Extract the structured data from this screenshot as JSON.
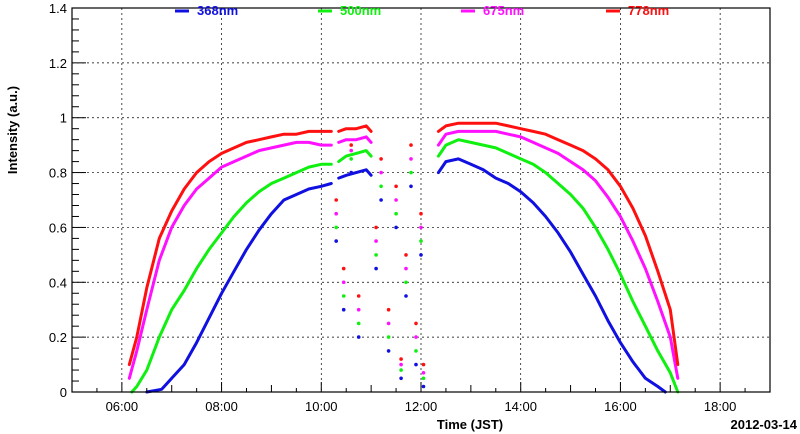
{
  "chart_data": {
    "type": "line",
    "title": "",
    "xlabel": "Time (JST)",
    "ylabel": "Intensity (a.u.)",
    "date_label": "2012-03-14",
    "x_unit": "hours",
    "xlim": [
      5.0,
      19.0
    ],
    "ylim": [
      0,
      1.4
    ],
    "x_ticks": [
      {
        "value": 6,
        "label": "06:00"
      },
      {
        "value": 8,
        "label": "08:00"
      },
      {
        "value": 10,
        "label": "10:00"
      },
      {
        "value": 12,
        "label": "12:00"
      },
      {
        "value": 14,
        "label": "14:00"
      },
      {
        "value": 16,
        "label": "16:00"
      },
      {
        "value": 18,
        "label": "18:00"
      }
    ],
    "y_ticks": [
      {
        "value": 0,
        "label": "0"
      },
      {
        "value": 0.2,
        "label": "0.2"
      },
      {
        "value": 0.4,
        "label": "0.4"
      },
      {
        "value": 0.6,
        "label": "0.6"
      },
      {
        "value": 0.8,
        "label": "0.8"
      },
      {
        "value": 1.0,
        "label": "1"
      },
      {
        "value": 1.2,
        "label": "1.2"
      },
      {
        "value": 1.4,
        "label": "1.4"
      }
    ],
    "grid": true,
    "legend_position": "top",
    "series": [
      {
        "name": "368nm",
        "color": "#1010e0",
        "segments": [
          [
            [
              6.5,
              0.0
            ],
            [
              6.8,
              0.01
            ],
            [
              7.0,
              0.05
            ],
            [
              7.25,
              0.1
            ],
            [
              7.5,
              0.18
            ],
            [
              7.75,
              0.27
            ],
            [
              8.0,
              0.36
            ],
            [
              8.25,
              0.44
            ],
            [
              8.5,
              0.52
            ],
            [
              8.75,
              0.59
            ],
            [
              9.0,
              0.65
            ],
            [
              9.25,
              0.7
            ],
            [
              9.5,
              0.72
            ],
            [
              9.75,
              0.74
            ],
            [
              10.0,
              0.75
            ],
            [
              10.2,
              0.76
            ]
          ],
          [
            [
              10.35,
              0.78
            ],
            [
              10.5,
              0.79
            ],
            [
              10.7,
              0.8
            ],
            [
              10.9,
              0.81
            ],
            [
              11.0,
              0.79
            ]
          ],
          [
            [
              12.35,
              0.8
            ],
            [
              12.5,
              0.84
            ],
            [
              12.75,
              0.85
            ],
            [
              13.0,
              0.83
            ],
            [
              13.25,
              0.81
            ],
            [
              13.5,
              0.78
            ],
            [
              13.75,
              0.76
            ],
            [
              14.0,
              0.73
            ],
            [
              14.25,
              0.69
            ],
            [
              14.5,
              0.64
            ],
            [
              14.75,
              0.58
            ],
            [
              15.0,
              0.51
            ],
            [
              15.25,
              0.43
            ],
            [
              15.5,
              0.35
            ],
            [
              15.75,
              0.26
            ],
            [
              16.0,
              0.18
            ],
            [
              16.25,
              0.11
            ],
            [
              16.5,
              0.05
            ],
            [
              16.75,
              0.02
            ],
            [
              16.9,
              0.0
            ]
          ]
        ],
        "scatter": [
          [
            10.3,
            0.55
          ],
          [
            10.45,
            0.3
          ],
          [
            10.6,
            0.8
          ],
          [
            10.75,
            0.2
          ],
          [
            11.1,
            0.45
          ],
          [
            11.2,
            0.7
          ],
          [
            11.35,
            0.15
          ],
          [
            11.5,
            0.6
          ],
          [
            11.6,
            0.05
          ],
          [
            11.7,
            0.35
          ],
          [
            11.8,
            0.75
          ],
          [
            11.9,
            0.1
          ],
          [
            12.0,
            0.5
          ],
          [
            12.05,
            0.02
          ]
        ]
      },
      {
        "name": "500nm",
        "color": "#10f010",
        "segments": [
          [
            [
              6.2,
              0.0
            ],
            [
              6.3,
              0.02
            ],
            [
              6.5,
              0.08
            ],
            [
              6.75,
              0.2
            ],
            [
              7.0,
              0.3
            ],
            [
              7.25,
              0.37
            ],
            [
              7.5,
              0.45
            ],
            [
              7.75,
              0.52
            ],
            [
              8.0,
              0.58
            ],
            [
              8.25,
              0.64
            ],
            [
              8.5,
              0.69
            ],
            [
              8.75,
              0.73
            ],
            [
              9.0,
              0.76
            ],
            [
              9.25,
              0.78
            ],
            [
              9.5,
              0.8
            ],
            [
              9.75,
              0.82
            ],
            [
              10.0,
              0.83
            ],
            [
              10.2,
              0.83
            ]
          ],
          [
            [
              10.35,
              0.84
            ],
            [
              10.5,
              0.86
            ],
            [
              10.7,
              0.87
            ],
            [
              10.9,
              0.88
            ],
            [
              11.0,
              0.86
            ]
          ],
          [
            [
              12.35,
              0.86
            ],
            [
              12.5,
              0.9
            ],
            [
              12.75,
              0.92
            ],
            [
              13.0,
              0.91
            ],
            [
              13.25,
              0.9
            ],
            [
              13.5,
              0.89
            ],
            [
              13.75,
              0.87
            ],
            [
              14.0,
              0.85
            ],
            [
              14.25,
              0.83
            ],
            [
              14.5,
              0.8
            ],
            [
              14.75,
              0.76
            ],
            [
              15.0,
              0.72
            ],
            [
              15.25,
              0.67
            ],
            [
              15.5,
              0.6
            ],
            [
              15.75,
              0.52
            ],
            [
              16.0,
              0.43
            ],
            [
              16.25,
              0.33
            ],
            [
              16.5,
              0.24
            ],
            [
              16.75,
              0.15
            ],
            [
              17.0,
              0.07
            ],
            [
              17.15,
              0.0
            ]
          ]
        ],
        "scatter": [
          [
            10.3,
            0.6
          ],
          [
            10.45,
            0.35
          ],
          [
            10.6,
            0.85
          ],
          [
            10.75,
            0.25
          ],
          [
            11.1,
            0.5
          ],
          [
            11.2,
            0.75
          ],
          [
            11.35,
            0.2
          ],
          [
            11.5,
            0.65
          ],
          [
            11.6,
            0.08
          ],
          [
            11.7,
            0.4
          ],
          [
            11.8,
            0.8
          ],
          [
            11.9,
            0.15
          ],
          [
            12.0,
            0.55
          ],
          [
            12.05,
            0.05
          ]
        ]
      },
      {
        "name": "675nm",
        "color": "#ff10ff",
        "segments": [
          [
            [
              6.15,
              0.05
            ],
            [
              6.3,
              0.15
            ],
            [
              6.5,
              0.3
            ],
            [
              6.75,
              0.48
            ],
            [
              7.0,
              0.6
            ],
            [
              7.25,
              0.68
            ],
            [
              7.5,
              0.74
            ],
            [
              7.75,
              0.78
            ],
            [
              8.0,
              0.82
            ],
            [
              8.25,
              0.84
            ],
            [
              8.5,
              0.86
            ],
            [
              8.75,
              0.88
            ],
            [
              9.0,
              0.89
            ],
            [
              9.25,
              0.9
            ],
            [
              9.5,
              0.91
            ],
            [
              9.75,
              0.91
            ],
            [
              10.0,
              0.9
            ],
            [
              10.2,
              0.9
            ]
          ],
          [
            [
              10.35,
              0.91
            ],
            [
              10.5,
              0.92
            ],
            [
              10.7,
              0.92
            ],
            [
              10.9,
              0.93
            ],
            [
              11.0,
              0.91
            ]
          ],
          [
            [
              12.35,
              0.9
            ],
            [
              12.5,
              0.94
            ],
            [
              12.75,
              0.95
            ],
            [
              13.0,
              0.95
            ],
            [
              13.25,
              0.95
            ],
            [
              13.5,
              0.95
            ],
            [
              13.75,
              0.94
            ],
            [
              14.0,
              0.93
            ],
            [
              14.25,
              0.91
            ],
            [
              14.5,
              0.89
            ],
            [
              14.75,
              0.87
            ],
            [
              15.0,
              0.84
            ],
            [
              15.25,
              0.81
            ],
            [
              15.5,
              0.77
            ],
            [
              15.75,
              0.71
            ],
            [
              16.0,
              0.64
            ],
            [
              16.25,
              0.55
            ],
            [
              16.5,
              0.45
            ],
            [
              16.75,
              0.33
            ],
            [
              17.0,
              0.2
            ],
            [
              17.15,
              0.05
            ]
          ]
        ],
        "scatter": [
          [
            10.3,
            0.65
          ],
          [
            10.45,
            0.4
          ],
          [
            10.6,
            0.88
          ],
          [
            10.75,
            0.3
          ],
          [
            11.1,
            0.55
          ],
          [
            11.2,
            0.8
          ],
          [
            11.35,
            0.25
          ],
          [
            11.5,
            0.7
          ],
          [
            11.6,
            0.1
          ],
          [
            11.7,
            0.45
          ],
          [
            11.8,
            0.85
          ],
          [
            11.9,
            0.2
          ],
          [
            12.0,
            0.6
          ],
          [
            12.05,
            0.07
          ]
        ]
      },
      {
        "name": "778nm",
        "color": "#ff1010",
        "segments": [
          [
            [
              6.15,
              0.1
            ],
            [
              6.3,
              0.2
            ],
            [
              6.5,
              0.38
            ],
            [
              6.75,
              0.56
            ],
            [
              7.0,
              0.66
            ],
            [
              7.25,
              0.74
            ],
            [
              7.5,
              0.8
            ],
            [
              7.75,
              0.84
            ],
            [
              8.0,
              0.87
            ],
            [
              8.25,
              0.89
            ],
            [
              8.5,
              0.91
            ],
            [
              8.75,
              0.92
            ],
            [
              9.0,
              0.93
            ],
            [
              9.25,
              0.94
            ],
            [
              9.5,
              0.94
            ],
            [
              9.75,
              0.95
            ],
            [
              10.0,
              0.95
            ],
            [
              10.2,
              0.95
            ]
          ],
          [
            [
              10.35,
              0.95
            ],
            [
              10.5,
              0.96
            ],
            [
              10.7,
              0.96
            ],
            [
              10.9,
              0.97
            ],
            [
              11.0,
              0.95
            ]
          ],
          [
            [
              12.35,
              0.95
            ],
            [
              12.5,
              0.97
            ],
            [
              12.75,
              0.98
            ],
            [
              13.0,
              0.98
            ],
            [
              13.25,
              0.98
            ],
            [
              13.5,
              0.98
            ],
            [
              13.75,
              0.97
            ],
            [
              14.0,
              0.96
            ],
            [
              14.25,
              0.95
            ],
            [
              14.5,
              0.94
            ],
            [
              14.75,
              0.92
            ],
            [
              15.0,
              0.9
            ],
            [
              15.25,
              0.88
            ],
            [
              15.5,
              0.85
            ],
            [
              15.75,
              0.81
            ],
            [
              16.0,
              0.75
            ],
            [
              16.25,
              0.67
            ],
            [
              16.5,
              0.57
            ],
            [
              16.75,
              0.44
            ],
            [
              17.0,
              0.3
            ],
            [
              17.15,
              0.1
            ]
          ]
        ],
        "scatter": [
          [
            10.3,
            0.7
          ],
          [
            10.45,
            0.45
          ],
          [
            10.6,
            0.9
          ],
          [
            10.75,
            0.35
          ],
          [
            11.1,
            0.6
          ],
          [
            11.2,
            0.85
          ],
          [
            11.35,
            0.3
          ],
          [
            11.5,
            0.75
          ],
          [
            11.6,
            0.12
          ],
          [
            11.7,
            0.5
          ],
          [
            11.8,
            0.9
          ],
          [
            11.9,
            0.25
          ],
          [
            12.0,
            0.65
          ],
          [
            12.05,
            0.1
          ]
        ]
      }
    ]
  }
}
